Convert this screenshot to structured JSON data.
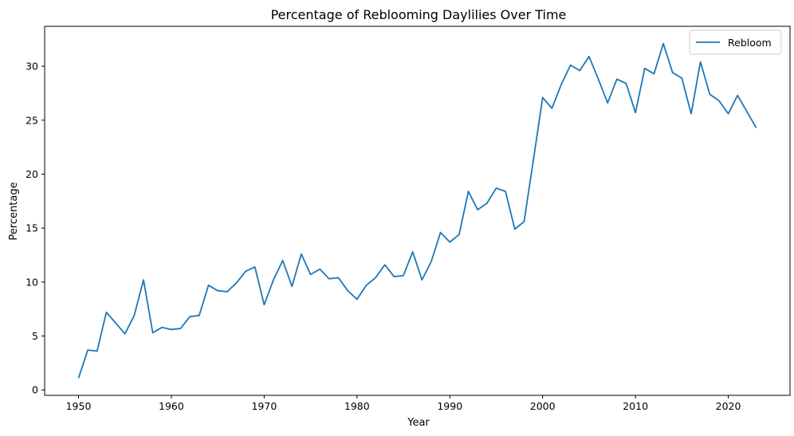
{
  "chart_data": {
    "type": "line",
    "title": "Percentage of Reblooming Daylilies Over Time",
    "xlabel": "Year",
    "ylabel": "Percentage",
    "xlim": [
      1946.35,
      2026.65
    ],
    "ylim": [
      -0.5,
      33.7
    ],
    "xticks": [
      1950,
      1960,
      1970,
      1980,
      1990,
      2000,
      2010,
      2020
    ],
    "yticks": [
      0,
      5,
      10,
      15,
      20,
      25,
      30
    ],
    "grid": false,
    "legend": {
      "position": "top-right"
    },
    "series": [
      {
        "name": "Rebloom",
        "color": "#1f77b4",
        "x": [
          1950,
          1951,
          1952,
          1953,
          1954,
          1955,
          1956,
          1957,
          1958,
          1959,
          1960,
          1961,
          1962,
          1963,
          1964,
          1965,
          1966,
          1967,
          1968,
          1969,
          1970,
          1971,
          1972,
          1973,
          1974,
          1975,
          1976,
          1977,
          1978,
          1979,
          1980,
          1981,
          1982,
          1983,
          1984,
          1985,
          1986,
          1987,
          1988,
          1989,
          1990,
          1991,
          1992,
          1993,
          1994,
          1995,
          1996,
          1997,
          1998,
          1999,
          2000,
          2001,
          2002,
          2003,
          2004,
          2005,
          2006,
          2007,
          2008,
          2009,
          2010,
          2011,
          2012,
          2013,
          2014,
          2015,
          2016,
          2017,
          2018,
          2019,
          2020,
          2021,
          2022,
          2023
        ],
        "y": [
          1.1,
          3.7,
          3.6,
          7.2,
          6.2,
          5.2,
          6.9,
          10.2,
          5.3,
          5.8,
          5.6,
          5.7,
          6.8,
          6.9,
          9.7,
          9.2,
          9.1,
          9.9,
          11.0,
          11.4,
          7.9,
          10.2,
          12.0,
          9.6,
          12.6,
          10.7,
          11.2,
          10.3,
          10.4,
          9.2,
          8.4,
          9.7,
          10.4,
          11.6,
          10.5,
          10.6,
          12.8,
          10.2,
          11.9,
          14.6,
          13.7,
          14.4,
          18.4,
          16.7,
          17.3,
          18.7,
          18.4,
          14.9,
          15.6,
          21.3,
          27.1,
          26.1,
          28.3,
          30.1,
          29.6,
          30.9,
          28.8,
          26.6,
          28.8,
          28.4,
          25.7,
          29.8,
          29.3,
          32.1,
          29.4,
          28.9,
          25.6,
          30.4,
          27.4,
          26.8,
          25.6,
          27.3,
          25.8,
          24.3
        ]
      }
    ]
  }
}
